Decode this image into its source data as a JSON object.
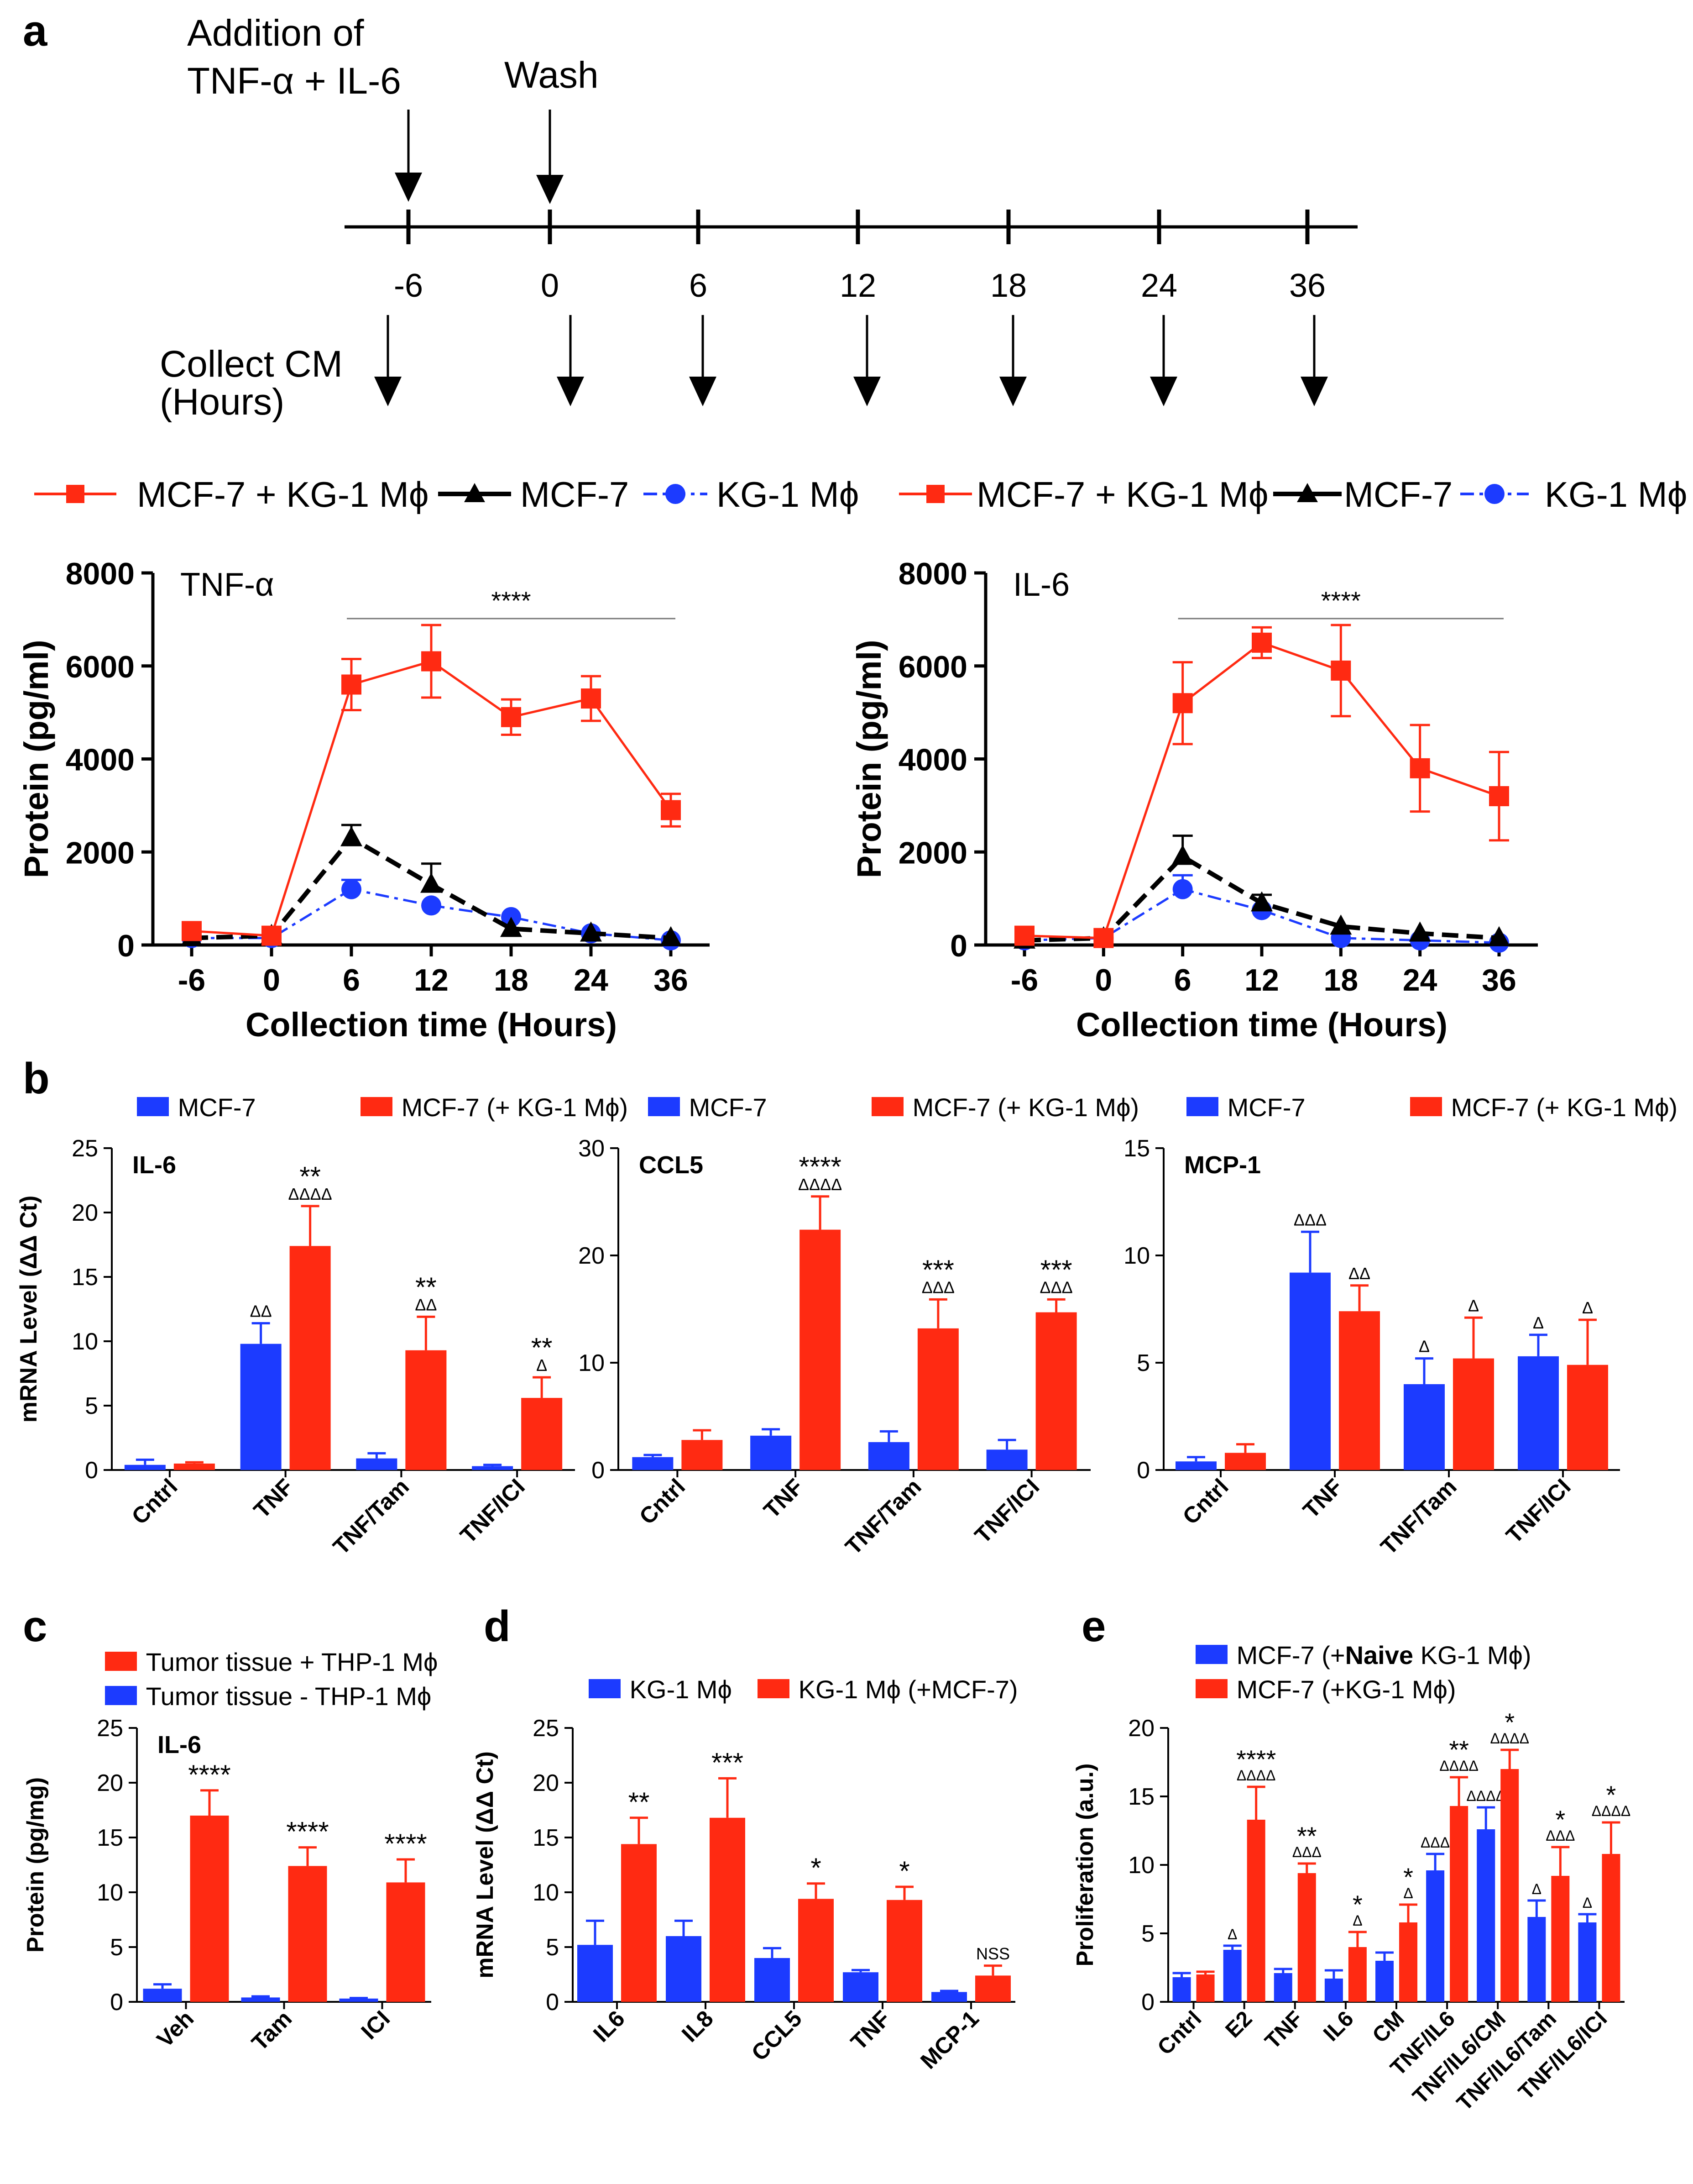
{
  "colors": {
    "red": "#ff2a12",
    "blue": "#1c3bff",
    "black": "#000000",
    "gray": "#777777"
  },
  "timeline": {
    "panel_label": "a",
    "addition_label_1": "Addition of",
    "addition_label_2": "TNF-α + IL-6",
    "wash_label": "Wash",
    "collect_label_1": "Collect CM",
    "collect_label_2": "(Hours)",
    "ticks": [
      "-6",
      "0",
      "6",
      "12",
      "18",
      "24",
      "36"
    ]
  },
  "legend_a": {
    "s1": "MCF-7 + KG-1 Mϕ",
    "s2": "MCF-7",
    "s3": "KG-1 Mϕ"
  },
  "chart_data": [
    {
      "id": "a1",
      "type": "line",
      "title": "TNF-α",
      "xlabel": "Collection time (Hours)",
      "ylabel": "Protein (pg/ml)",
      "x": [
        "-6",
        "0",
        "6",
        "12",
        "18",
        "24",
        "36"
      ],
      "ylim": [
        0,
        8000
      ],
      "yticks": [
        "0",
        "2000",
        "4000",
        "6000",
        "8000"
      ],
      "significance": "****",
      "series": [
        {
          "name": "MCF-7 + KG-1 Mϕ",
          "color": "#ff2a12",
          "marker": "square",
          "dash": "solid",
          "values": [
            300,
            200,
            5600,
            6100,
            4900,
            5300,
            2900
          ],
          "errors": [
            0,
            0,
            550,
            780,
            380,
            480,
            350
          ]
        },
        {
          "name": "MCF-7",
          "color": "#000000",
          "marker": "triangle",
          "dash": "dashed",
          "values": [
            150,
            200,
            2300,
            1300,
            350,
            250,
            150
          ],
          "errors": [
            0,
            0,
            280,
            450,
            0,
            0,
            0
          ]
        },
        {
          "name": "KG-1 Mϕ",
          "color": "#1c3bff",
          "marker": "circle",
          "dash": "dashdot",
          "values": [
            150,
            150,
            1200,
            850,
            600,
            250,
            100
          ],
          "errors": [
            0,
            0,
            200,
            0,
            0,
            0,
            0
          ]
        }
      ]
    },
    {
      "id": "a2",
      "type": "line",
      "title": "IL-6",
      "xlabel": "Collection time (Hours)",
      "ylabel": "Protein (pg/ml)",
      "x": [
        "-6",
        "0",
        "6",
        "12",
        "18",
        "24",
        "36"
      ],
      "ylim": [
        0,
        8000
      ],
      "yticks": [
        "0",
        "2000",
        "4000",
        "6000",
        "8000"
      ],
      "significance": "****",
      "series": [
        {
          "name": "MCF-7 + KG-1 Mϕ",
          "color": "#ff2a12",
          "marker": "square",
          "dash": "solid",
          "values": [
            200,
            150,
            5200,
            6500,
            5900,
            3800,
            3200
          ],
          "errors": [
            0,
            0,
            880,
            330,
            980,
            930,
            950
          ]
        },
        {
          "name": "MCF-7",
          "color": "#000000",
          "marker": "triangle",
          "dash": "dashed",
          "values": [
            100,
            150,
            1900,
            900,
            400,
            250,
            150
          ],
          "errors": [
            0,
            0,
            450,
            180,
            0,
            0,
            0
          ]
        },
        {
          "name": "KG-1 Mϕ",
          "color": "#1c3bff",
          "marker": "circle",
          "dash": "dashdot",
          "values": [
            100,
            150,
            1200,
            750,
            150,
            100,
            50
          ],
          "errors": [
            0,
            0,
            300,
            0,
            0,
            0,
            0
          ]
        }
      ]
    },
    {
      "id": "b1",
      "type": "bar",
      "panel_label": "b",
      "title": "IL-6",
      "ylabel": "mRNA Level (ΔΔ Ct)",
      "categories": [
        "Cntrl",
        "TNF",
        "TNF/Tam",
        "TNF/ICI"
      ],
      "ylim": [
        0,
        25
      ],
      "yticks": [
        "0",
        "5",
        "10",
        "15",
        "20",
        "25"
      ],
      "legend": [
        "MCF-7",
        "MCF-7 (+ KG-1 Mϕ)"
      ],
      "series": [
        {
          "name": "MCF-7",
          "color": "#1c3bff",
          "values": [
            0.4,
            9.8,
            0.9,
            0.3
          ],
          "errors": [
            0.4,
            1.6,
            0.4,
            0.1
          ],
          "labels": [
            "",
            "ΔΔ",
            "",
            ""
          ]
        },
        {
          "name": "MCF-7 (+ KG-1 Mϕ)",
          "color": "#ff2a12",
          "values": [
            0.5,
            17.4,
            9.3,
            5.6
          ],
          "errors": [
            0.1,
            3.1,
            2.6,
            1.6
          ],
          "labels": [
            "",
            "**|ΔΔΔΔ",
            "**|ΔΔ",
            "**|Δ"
          ]
        }
      ]
    },
    {
      "id": "b2",
      "type": "bar",
      "title": "CCL5",
      "categories": [
        "Cntrl",
        "TNF",
        "TNF/Tam",
        "TNF/ICI"
      ],
      "ylim": [
        0,
        30
      ],
      "yticks": [
        "0",
        "10",
        "20",
        "30"
      ],
      "legend": [
        "MCF-7",
        "MCF-7 (+ KG-1 Mϕ)"
      ],
      "series": [
        {
          "name": "MCF-7",
          "color": "#1c3bff",
          "values": [
            1.2,
            3.2,
            2.6,
            1.9
          ],
          "errors": [
            0.2,
            0.6,
            1.0,
            0.9
          ],
          "labels": [
            "",
            "",
            "",
            ""
          ]
        },
        {
          "name": "MCF-7 (+ KG-1 Mϕ)",
          "color": "#ff2a12",
          "values": [
            2.8,
            22.4,
            13.2,
            14.7
          ],
          "errors": [
            0.9,
            3.1,
            2.7,
            1.2
          ],
          "labels": [
            "",
            "****|ΔΔΔΔ",
            "***|ΔΔΔ",
            "***|ΔΔΔ"
          ]
        }
      ]
    },
    {
      "id": "b3",
      "type": "bar",
      "title": "MCP-1",
      "categories": [
        "Cntrl",
        "TNF",
        "TNF/Tam",
        "TNF/ICI"
      ],
      "ylim": [
        0,
        15
      ],
      "yticks": [
        "0",
        "5",
        "10",
        "15"
      ],
      "legend": [
        "MCF-7",
        "MCF-7 (+ KG-1 Mϕ)"
      ],
      "series": [
        {
          "name": "MCF-7",
          "color": "#1c3bff",
          "values": [
            0.4,
            9.2,
            4.0,
            5.3
          ],
          "errors": [
            0.2,
            1.9,
            1.2,
            1.0
          ],
          "labels": [
            "",
            "ΔΔΔ",
            "Δ",
            "Δ"
          ]
        },
        {
          "name": "MCF-7 (+ KG-1 Mϕ)",
          "color": "#ff2a12",
          "values": [
            0.8,
            7.4,
            5.2,
            4.9
          ],
          "errors": [
            0.4,
            1.2,
            1.9,
            2.1
          ],
          "labels": [
            "",
            "ΔΔ",
            "Δ",
            "Δ"
          ]
        }
      ]
    },
    {
      "id": "c",
      "type": "bar",
      "panel_label": "c",
      "title": "IL-6",
      "ylabel": "Protein (pg/mg)",
      "categories": [
        "Veh",
        "Tam",
        "ICI"
      ],
      "ylim": [
        0,
        25
      ],
      "yticks": [
        "0",
        "5",
        "10",
        "15",
        "20",
        "25"
      ],
      "legend": [
        "Tumor tissue + THP-1 Mϕ",
        "Tumor tissue - THP-1 Mϕ"
      ],
      "series": [
        {
          "name": "Tumor tissue - THP-1 Mϕ",
          "color": "#1c3bff",
          "values": [
            1.2,
            0.4,
            0.3
          ],
          "errors": [
            0.4,
            0.1,
            0.05
          ],
          "labels": [
            "",
            "",
            ""
          ]
        },
        {
          "name": "Tumor tissue + THP-1 Mϕ",
          "color": "#ff2a12",
          "values": [
            17.0,
            12.4,
            10.9
          ],
          "errors": [
            2.3,
            1.7,
            2.1
          ],
          "labels": [
            "****",
            "****",
            "****"
          ]
        }
      ]
    },
    {
      "id": "d",
      "type": "bar",
      "panel_label": "d",
      "ylabel": "mRNA Level (ΔΔ Ct)",
      "categories": [
        "IL6",
        "IL8",
        "CCL5",
        "TNF",
        "MCP-1"
      ],
      "ylim": [
        0,
        25
      ],
      "yticks": [
        "0",
        "5",
        "10",
        "15",
        "20",
        "25"
      ],
      "legend": [
        "KG-1 Mϕ",
        "KG-1 Mϕ (+MCF-7)"
      ],
      "series": [
        {
          "name": "KG-1 Mϕ",
          "color": "#1c3bff",
          "values": [
            5.2,
            6.0,
            4.0,
            2.7,
            0.9
          ],
          "errors": [
            2.2,
            1.4,
            0.9,
            0.2,
            0.1
          ],
          "labels": [
            "",
            "",
            "",
            "",
            ""
          ]
        },
        {
          "name": "KG-1 Mϕ (+MCF-7)",
          "color": "#ff2a12",
          "values": [
            14.4,
            16.8,
            9.4,
            9.3,
            2.4
          ],
          "errors": [
            2.4,
            3.6,
            1.4,
            1.2,
            0.9
          ],
          "labels": [
            "**",
            "***",
            "*",
            "*",
            "NSS"
          ]
        }
      ]
    },
    {
      "id": "e",
      "type": "bar",
      "panel_label": "e",
      "ylabel": "Proliferation  (a.u.)",
      "categories": [
        "Cntrl",
        "E2",
        "TNF",
        "IL6",
        "CM",
        "TNF/IL6",
        "TNF/IL6/CM",
        "TNF/IL6/Tam",
        "TNF/IL6/ICI"
      ],
      "ylim": [
        0,
        20
      ],
      "yticks": [
        "0",
        "5",
        "10",
        "15",
        "20"
      ],
      "legend": [
        "MCF-7 (+Naive KG-1 Mϕ)",
        "MCF-7 (+KG-1 Mϕ)"
      ],
      "legend_prefix": "MCF-7 (+",
      "legend_bold": "Naive",
      "legend_suffix": " KG-1 Mϕ)",
      "series": [
        {
          "name": "MCF-7 (+Naive KG-1 Mϕ)",
          "color": "#1c3bff",
          "values": [
            1.8,
            3.8,
            2.1,
            1.7,
            3.0,
            9.6,
            12.6,
            6.2,
            5.8
          ],
          "errors": [
            0.3,
            0.3,
            0.3,
            0.6,
            0.6,
            1.2,
            1.6,
            1.2,
            0.6
          ],
          "labels": [
            "",
            "Δ",
            "",
            "",
            "",
            "ΔΔΔ",
            "ΔΔΔΔ",
            "Δ",
            "Δ"
          ]
        },
        {
          "name": "MCF-7 (+KG-1 Mϕ)",
          "color": "#ff2a12",
          "values": [
            2.0,
            13.3,
            9.4,
            4.0,
            5.8,
            14.3,
            17.0,
            9.2,
            10.8
          ],
          "errors": [
            0.2,
            2.4,
            0.7,
            1.1,
            1.3,
            2.1,
            1.4,
            2.1,
            2.3
          ],
          "labels": [
            "",
            "****|ΔΔΔΔ",
            "**|ΔΔΔ",
            "*|Δ",
            "*|Δ",
            "**|ΔΔΔΔ",
            "*|ΔΔΔΔ",
            "*|ΔΔΔ",
            "*|ΔΔΔΔ"
          ]
        }
      ]
    }
  ]
}
